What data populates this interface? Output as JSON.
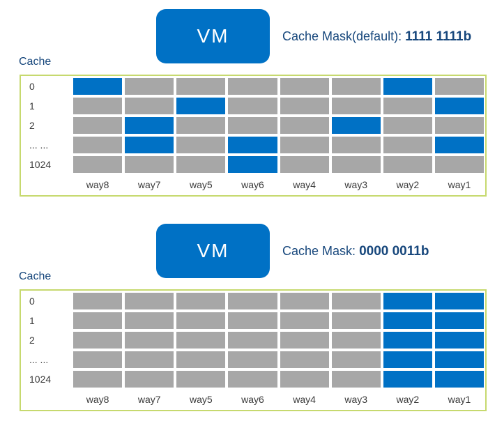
{
  "colors": {
    "vm_blue": "#0071C5",
    "cell_blue": "#0071C5",
    "cell_gray": "#A7A7A7",
    "frame_border": "#C6D96E",
    "heading_navy": "#17477C",
    "label_gray": "#3A3A3A"
  },
  "panels": [
    {
      "vm_label": "VM",
      "mask_label": "Cache Mask(default):",
      "mask_value": "1111 1111b",
      "cache_label": "Cache",
      "row_labels": [
        "0",
        "1",
        "2",
        "... ...",
        "1024"
      ],
      "col_labels": [
        "way8",
        "way7",
        "way5",
        "way6",
        "way4",
        "way3",
        "way2",
        "way1"
      ],
      "blue_cells": [
        [
          0,
          0
        ],
        [
          0,
          6
        ],
        [
          1,
          2
        ],
        [
          1,
          7
        ],
        [
          2,
          1
        ],
        [
          2,
          5
        ],
        [
          3,
          1
        ],
        [
          3,
          3
        ],
        [
          3,
          7
        ],
        [
          4,
          3
        ]
      ]
    },
    {
      "vm_label": "VM",
      "mask_label": "Cache Mask:",
      "mask_value": "0000 0011b",
      "cache_label": "Cache",
      "row_labels": [
        "0",
        "1",
        "2",
        "... ...",
        "1024"
      ],
      "col_labels": [
        "way8",
        "way7",
        "way5",
        "way6",
        "way4",
        "way3",
        "way2",
        "way1"
      ],
      "blue_cells": [
        [
          0,
          6
        ],
        [
          0,
          7
        ],
        [
          1,
          6
        ],
        [
          1,
          7
        ],
        [
          2,
          6
        ],
        [
          2,
          7
        ],
        [
          3,
          6
        ],
        [
          3,
          7
        ],
        [
          4,
          6
        ],
        [
          4,
          7
        ]
      ]
    }
  ]
}
